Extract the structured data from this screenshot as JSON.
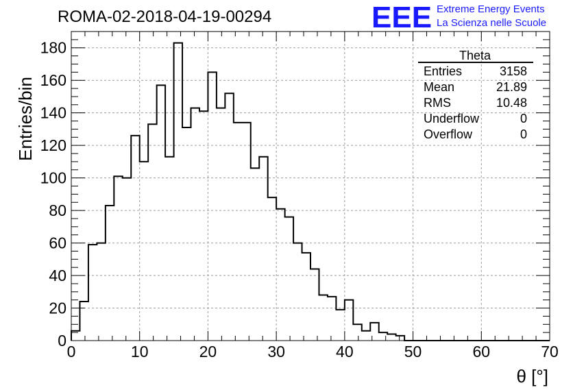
{
  "header": {
    "run_title": "ROMA-02-2018-04-19-00294",
    "logo_text": "EEE",
    "logo_line1": "Extreme Energy Events",
    "logo_line2": "La Scienza nelle Scuole",
    "logo_color": "#1a1aff"
  },
  "stats_box": {
    "title": "Theta",
    "rows": [
      {
        "label": "Entries",
        "value": "3158"
      },
      {
        "label": "Mean",
        "value": "21.89"
      },
      {
        "label": "RMS",
        "value": "10.48"
      },
      {
        "label": "Underflow",
        "value": "0"
      },
      {
        "label": "Overflow",
        "value": "0"
      }
    ]
  },
  "chart_data": {
    "type": "bar",
    "style": "step-histogram",
    "title": "ROMA-02-2018-04-19-00294",
    "xlabel": "θ [°]",
    "ylabel": "Entries/bin",
    "xlim": [
      0,
      70
    ],
    "ylim": [
      0,
      190
    ],
    "grid": true,
    "bin_width": 1.25,
    "bin_start": 0,
    "values": [
      6,
      24,
      59,
      60,
      83,
      101,
      100,
      126,
      110,
      133,
      157,
      113,
      183,
      131,
      143,
      141,
      165,
      143,
      152,
      134,
      134,
      106,
      113,
      88,
      81,
      76,
      60,
      54,
      44,
      28,
      27,
      19,
      25,
      10,
      6,
      11,
      5,
      4,
      3,
      0,
      0,
      0,
      0,
      0,
      0,
      0,
      0,
      0,
      0,
      0,
      0,
      0,
      0,
      0,
      0,
      0
    ],
    "x_ticks": [
      "0",
      "10",
      "20",
      "30",
      "40",
      "50",
      "60",
      "70"
    ],
    "y_ticks": [
      "0",
      "20",
      "40",
      "60",
      "80",
      "100",
      "120",
      "140",
      "160",
      "180"
    ]
  }
}
